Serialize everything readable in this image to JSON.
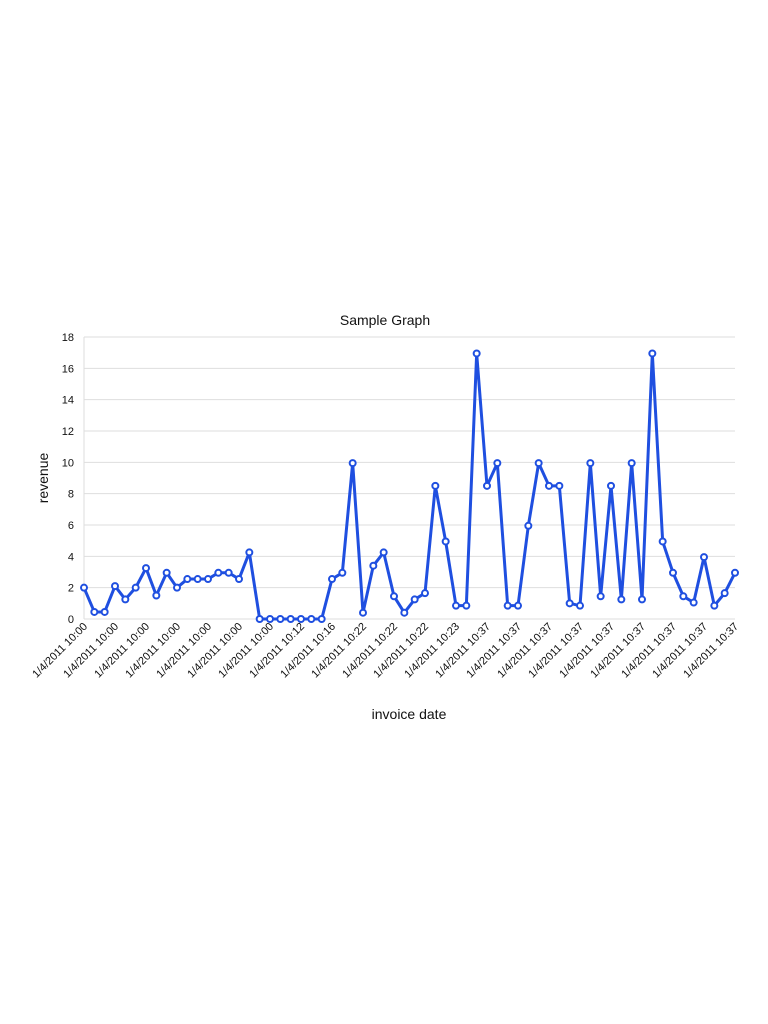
{
  "chart_data": {
    "type": "line",
    "title": "Sample Graph",
    "xlabel": "invoice date",
    "ylabel": "revenue",
    "ylim": [
      0,
      18
    ],
    "yticks": [
      0,
      2,
      4,
      6,
      8,
      10,
      12,
      14,
      16,
      18
    ],
    "grid": true,
    "line_color": "#1f4fe0",
    "x_tick_labels": [
      "1/4/2011 10:00",
      "1/4/2011 10:00",
      "1/4/2011 10:00",
      "1/4/2011 10:00",
      "1/4/2011 10:00",
      "1/4/2011 10:00",
      "1/4/2011 10:00",
      "1/4/2011 10:12",
      "1/4/2011 10:16",
      "1/4/2011 10:22",
      "1/4/2011 10:22",
      "1/4/2011 10:22",
      "1/4/2011 10:23",
      "1/4/2011 10:37",
      "1/4/2011 10:37",
      "1/4/2011 10:37",
      "1/4/2011 10:37",
      "1/4/2011 10:37",
      "1/4/2011 10:37",
      "1/4/2011 10:37",
      "1/4/2011 10:37",
      "1/4/2011 10:37"
    ],
    "values": [
      2.0,
      0.45,
      0.45,
      2.1,
      1.25,
      2.0,
      3.25,
      1.5,
      2.95,
      2.0,
      2.55,
      2.55,
      2.55,
      2.95,
      2.95,
      2.55,
      4.25,
      0,
      0,
      0,
      0,
      0,
      0,
      0,
      2.55,
      2.95,
      9.95,
      0.4,
      3.4,
      4.25,
      1.45,
      0.4,
      1.25,
      1.65,
      8.5,
      4.95,
      0.85,
      0.85,
      16.95,
      8.5,
      9.95,
      0.85,
      0.85,
      5.95,
      9.95,
      8.5,
      8.5,
      1.0,
      0.85,
      9.95,
      1.45,
      8.5,
      1.25,
      9.95,
      1.25,
      16.95,
      4.95,
      2.95,
      1.45,
      1.05,
      3.95,
      0.85,
      1.65,
      2.95
    ]
  }
}
